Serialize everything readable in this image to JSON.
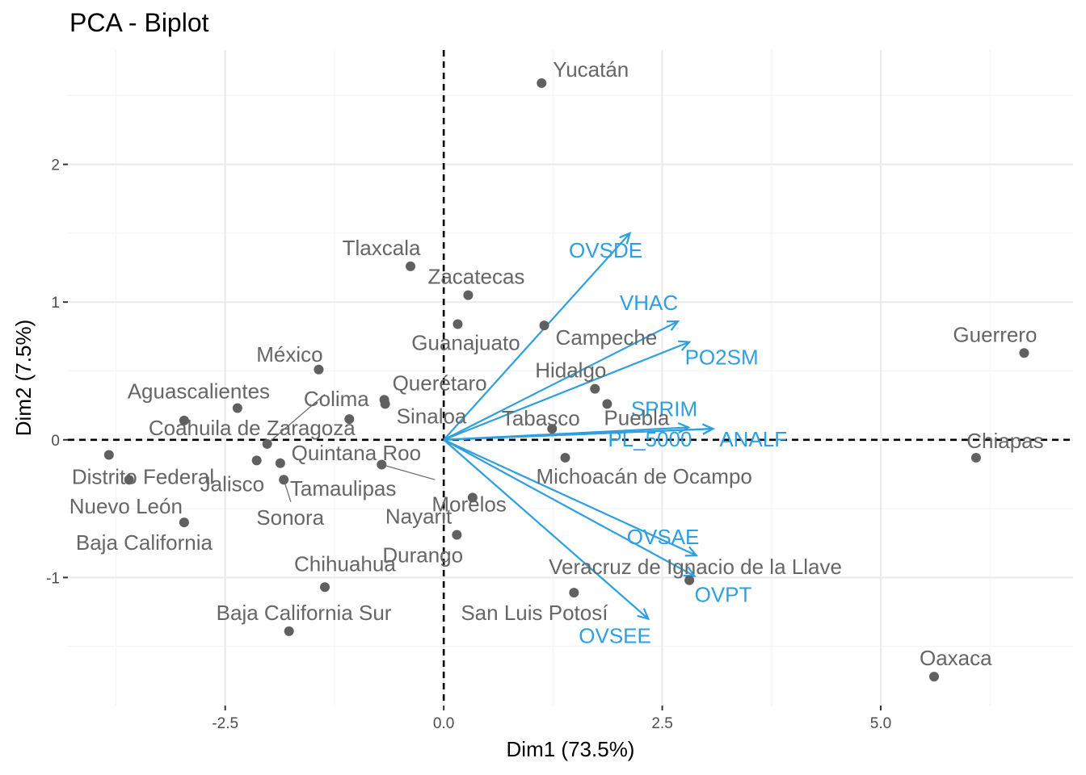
{
  "chart_data": {
    "type": "scatter",
    "title": "PCA - Biplot",
    "xlabel": "Dim1 (73.5%)",
    "ylabel": "Dim2 (7.5%)",
    "xlim": [
      -4.3,
      7.2
    ],
    "ylim": [
      -1.93,
      2.83
    ],
    "xticks": [
      -2.5,
      0.0,
      2.5,
      5.0
    ],
    "xtick_labels": [
      "-2.5",
      "0.0",
      "2.5",
      "5.0"
    ],
    "yticks": [
      -1,
      0,
      1,
      2
    ],
    "ytick_labels": [
      "-1",
      "0",
      "1",
      "2"
    ],
    "grid": true,
    "reference_lines": {
      "x": 0,
      "y": 0,
      "style": "dashed"
    },
    "colors": {
      "individuals": "#666666",
      "variables": "#2E9FDF"
    },
    "individuals": [
      {
        "name": "Yucatán",
        "x": 1.12,
        "y": 2.59
      },
      {
        "name": "Tlaxcala",
        "x": -0.38,
        "y": 1.26
      },
      {
        "name": "Zacatecas",
        "x": 0.28,
        "y": 1.05
      },
      {
        "name": "Guanajuato",
        "x": 0.16,
        "y": 0.84
      },
      {
        "name": "Campeche",
        "x": 1.15,
        "y": 0.83
      },
      {
        "name": "México",
        "x": -1.43,
        "y": 0.51
      },
      {
        "name": "Querétaro",
        "x": -0.68,
        "y": 0.29
      },
      {
        "name": "Sinaloa",
        "x": -0.67,
        "y": 0.26
      },
      {
        "name": "Hidalgo",
        "x": 1.73,
        "y": 0.37
      },
      {
        "name": "Puebla",
        "x": 1.87,
        "y": 0.26
      },
      {
        "name": "Tabasco",
        "x": 1.24,
        "y": 0.08
      },
      {
        "name": "Guerrero",
        "x": 6.64,
        "y": 0.63
      },
      {
        "name": "Chiapas",
        "x": 6.09,
        "y": -0.13
      },
      {
        "name": "Aguascalientes",
        "x": -2.36,
        "y": 0.23
      },
      {
        "name": "Colima",
        "x": -1.08,
        "y": 0.15
      },
      {
        "name": "Coahuila de Zaragoza",
        "x": -2.97,
        "y": 0.14
      },
      {
        "name": "Quintana Roo",
        "x": -2.02,
        "y": -0.03
      },
      {
        "name": "Distrito Federal",
        "x": -3.83,
        "y": -0.11
      },
      {
        "name": "Nuevo León",
        "x": -3.6,
        "y": -0.29
      },
      {
        "name": "Jalisco",
        "x": -2.14,
        "y": -0.15
      },
      {
        "name": "Tamaulipas",
        "x": -1.87,
        "y": -0.17
      },
      {
        "name": "Sonora",
        "x": -1.83,
        "y": -0.29
      },
      {
        "name": "Morelos",
        "x": -0.71,
        "y": -0.18
      },
      {
        "name": "Michoacán de Ocampo",
        "x": 1.39,
        "y": -0.13
      },
      {
        "name": "Nayarit",
        "x": 0.33,
        "y": -0.42
      },
      {
        "name": "Baja California",
        "x": -2.97,
        "y": -0.6
      },
      {
        "name": "Durango",
        "x": 0.15,
        "y": -0.69
      },
      {
        "name": "Veracruz de Ignacio de la Llave",
        "x": 2.81,
        "y": -1.02
      },
      {
        "name": "San Luis Potosí",
        "x": 1.49,
        "y": -1.11
      },
      {
        "name": "Chihuahua",
        "x": -1.36,
        "y": -1.07
      },
      {
        "name": "Baja California Sur",
        "x": -1.77,
        "y": -1.39
      },
      {
        "name": "Oaxaca",
        "x": 5.61,
        "y": -1.72
      }
    ],
    "variables": [
      {
        "name": "OVSDE",
        "x": 2.13,
        "y": 1.5
      },
      {
        "name": "VHAC",
        "x": 2.68,
        "y": 0.86
      },
      {
        "name": "PO2SM",
        "x": 2.81,
        "y": 0.71
      },
      {
        "name": "SPRIM",
        "x": 2.8,
        "y": 0.09
      },
      {
        "name": "PL_5000",
        "x": 3.08,
        "y": 0.08
      },
      {
        "name": "ANALF",
        "x": 3.08,
        "y": 0.08
      },
      {
        "name": "OVSAE",
        "x": 2.89,
        "y": -0.84
      },
      {
        "name": "OVPT",
        "x": 2.87,
        "y": -0.99
      },
      {
        "name": "OVSEE",
        "x": 2.34,
        "y": -1.3
      }
    ]
  }
}
